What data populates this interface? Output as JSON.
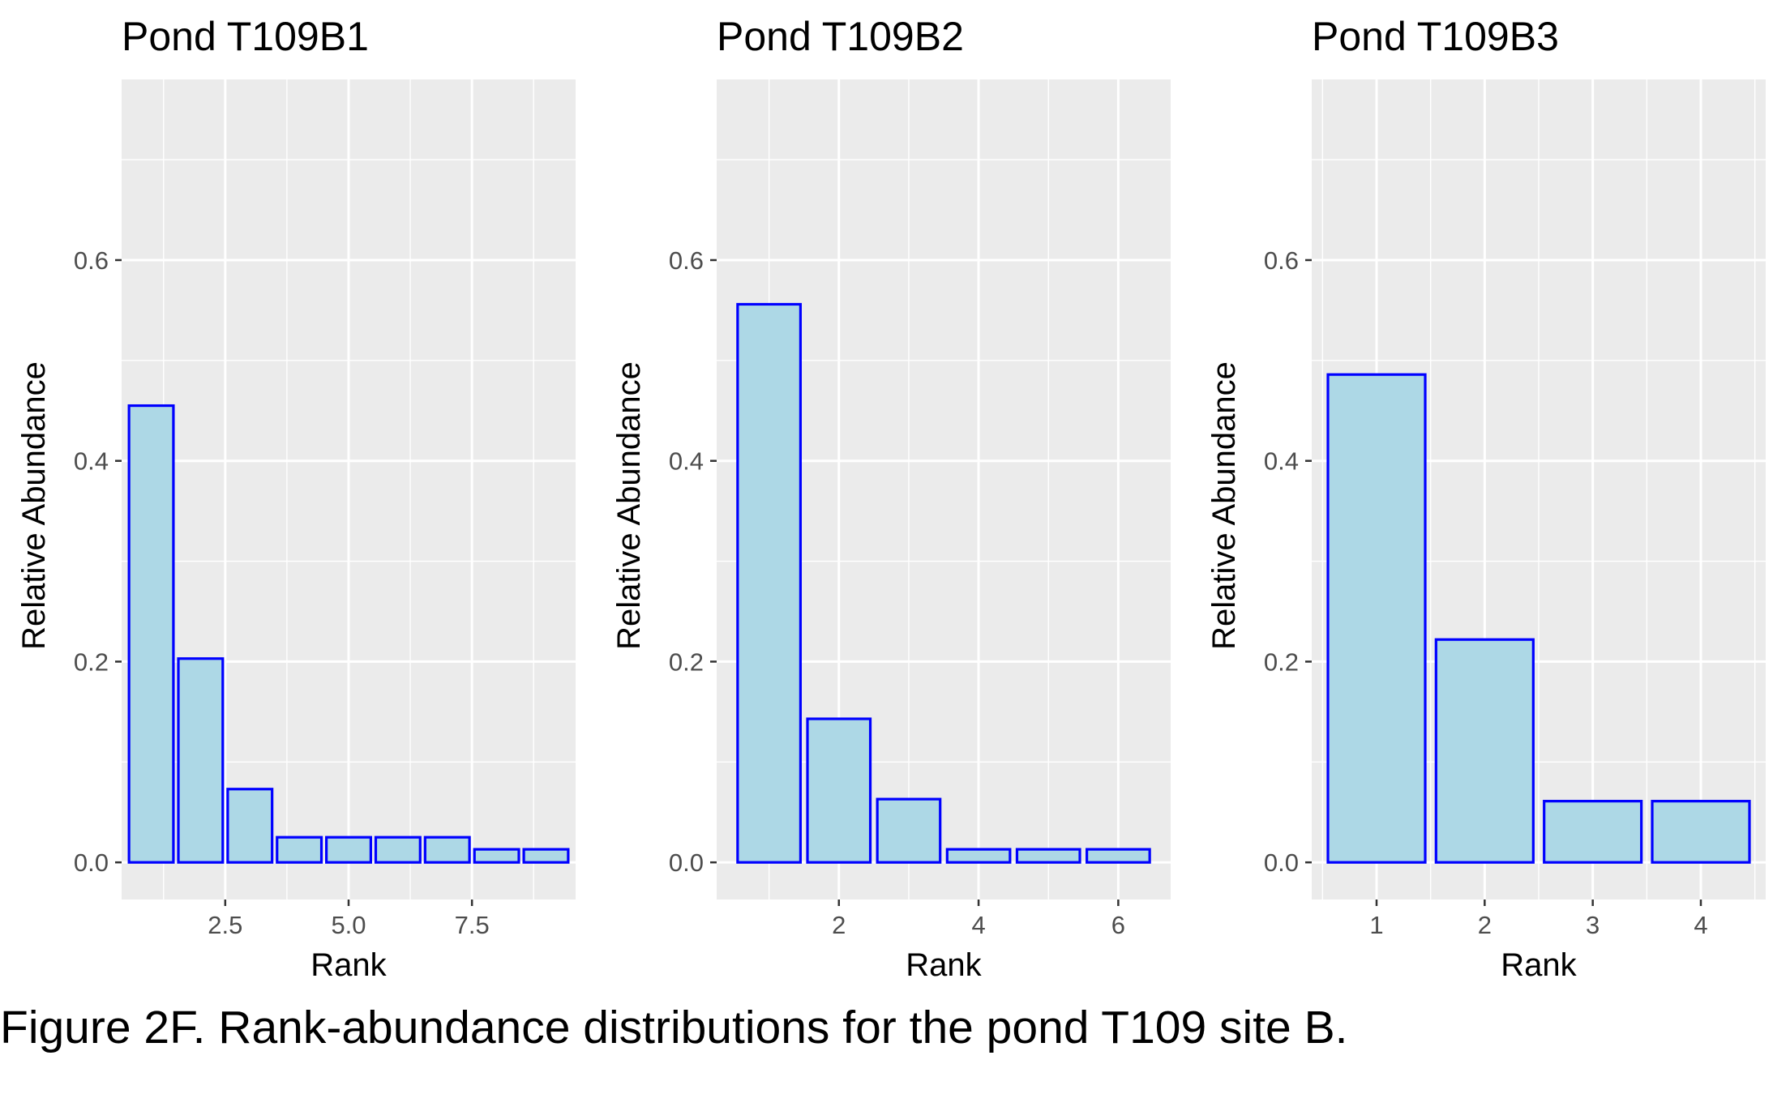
{
  "caption": "Figure 2F. Rank-abundance distributions for the pond T109 site B.",
  "colors": {
    "panel_bg": "#ebebeb",
    "grid": "#ffffff",
    "bar_fill": "#add8e6",
    "bar_stroke": "#0000ff",
    "tick_text": "#4d4d4d"
  },
  "chart_data": [
    {
      "type": "bar",
      "title": "Pond T109B1",
      "xlabel": "Rank",
      "ylabel": "Relative Abundance",
      "x": [
        1,
        2,
        3,
        4,
        5,
        6,
        7,
        8,
        9
      ],
      "values": [
        0.455,
        0.203,
        0.073,
        0.025,
        0.025,
        0.025,
        0.025,
        0.013,
        0.013
      ],
      "xlim": [
        0.4,
        9.6
      ],
      "ylim": [
        -0.037,
        0.78
      ],
      "x_ticks": [
        2.5,
        5.0,
        7.5
      ],
      "x_tick_labels": [
        "2.5",
        "5.0",
        "7.5"
      ],
      "y_ticks": [
        0,
        0.2,
        0.4,
        0.6
      ],
      "y_tick_labels": [
        "0.0",
        "0.2",
        "0.4",
        "0.6"
      ],
      "grid": true
    },
    {
      "type": "bar",
      "title": "Pond T109B2",
      "xlabel": "Rank",
      "ylabel": "Relative Abundance",
      "x": [
        1,
        2,
        3,
        4,
        5,
        6
      ],
      "values": [
        0.556,
        0.143,
        0.063,
        0.013,
        0.013,
        0.013
      ],
      "xlim": [
        0.25,
        6.75
      ],
      "ylim": [
        -0.037,
        0.78
      ],
      "x_ticks": [
        2,
        4,
        6
      ],
      "x_tick_labels": [
        "2",
        "4",
        "6"
      ],
      "y_ticks": [
        0,
        0.2,
        0.4,
        0.6
      ],
      "y_tick_labels": [
        "0.0",
        "0.2",
        "0.4",
        "0.6"
      ],
      "grid": true
    },
    {
      "type": "bar",
      "title": "Pond T109B3",
      "xlabel": "Rank",
      "ylabel": "Relative Abundance",
      "x": [
        1,
        2,
        3,
        4
      ],
      "values": [
        0.486,
        0.222,
        0.061,
        0.061
      ],
      "xlim": [
        0.4,
        4.6
      ],
      "ylim": [
        -0.037,
        0.78
      ],
      "x_ticks": [
        1,
        2,
        3,
        4
      ],
      "x_tick_labels": [
        "1",
        "2",
        "3",
        "4"
      ],
      "y_ticks": [
        0,
        0.2,
        0.4,
        0.6
      ],
      "y_tick_labels": [
        "0.0",
        "0.2",
        "0.4",
        "0.6"
      ],
      "grid": true
    }
  ]
}
